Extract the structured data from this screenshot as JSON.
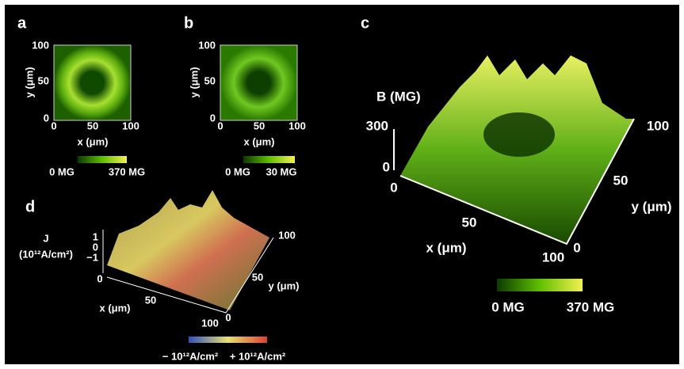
{
  "panels": [
    {
      "label": "a",
      "y_ticks": [
        "100",
        "50",
        "0"
      ],
      "x_ticks": [
        "0",
        "50",
        "100"
      ],
      "y_label": "y (μm)",
      "x_label": "x (μm)",
      "colorbar": [
        "0 MG",
        "370 MG"
      ]
    },
    {
      "label": "b",
      "y_ticks": [
        "100",
        "50",
        "0"
      ],
      "x_ticks": [
        "0",
        "50",
        "100"
      ],
      "y_label": "y (μm)",
      "x_label": "x (μm)",
      "colorbar": [
        "0 MG",
        "30 MG"
      ]
    },
    {
      "label": "c",
      "z_label": "B (MG)",
      "z_ticks": [
        "300",
        "0"
      ],
      "x_ticks": [
        "0",
        "50",
        "100"
      ],
      "x_label": "x (μm)",
      "y_ticks": [
        "0",
        "50",
        "100"
      ],
      "y_label": "y (μm)",
      "colorbar": [
        "0 MG",
        "370 MG"
      ]
    },
    {
      "label": "d",
      "z_label": [
        "J",
        "(10¹²A/cm²)"
      ],
      "z_ticks": [
        "1",
        "0",
        "−1"
      ],
      "x_ticks": [
        "0",
        "50",
        "100"
      ],
      "x_label": "x (μm)",
      "y_ticks": [
        "0",
        "50",
        "100"
      ],
      "y_label": "y (μm)",
      "colorbar": [
        "− 10¹²A/cm²",
        "+ 10¹²A/cm²"
      ]
    }
  ]
}
